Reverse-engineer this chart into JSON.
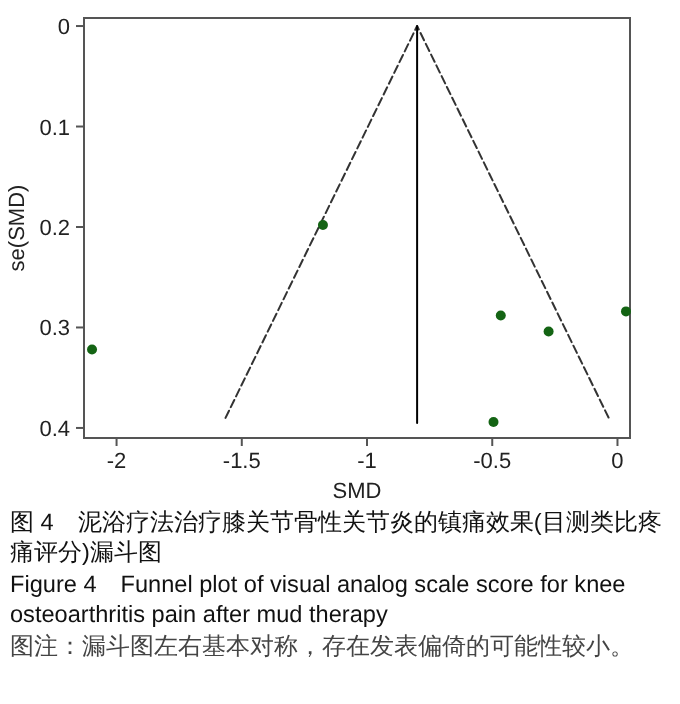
{
  "chart_data": {
    "type": "scatter",
    "xlabel": "SMD",
    "ylabel": "se(SMD)",
    "xlim": [
      -2.13,
      0.05
    ],
    "ylim": [
      0.41,
      -0.008
    ],
    "xticks": [
      -2,
      -1.5,
      -1,
      -0.5,
      0
    ],
    "yticks": [
      0,
      0.1,
      0.2,
      0.3,
      0.4
    ],
    "grid": false,
    "series": [
      {
        "type": "line",
        "x": [
          -1.565,
          -0.8,
          -0.035
        ],
        "values": [
          0.39,
          0,
          0.39
        ],
        "color": "#333333",
        "line_style": "dashed",
        "marker": "none"
      },
      {
        "type": "line",
        "x": [
          -0.8,
          -0.8
        ],
        "values": [
          0,
          0.395
        ],
        "color": "#000000",
        "line_style": "solid",
        "marker": "none"
      },
      {
        "x": [
          -2.098,
          -1.176,
          -0.466,
          -0.275,
          0.034,
          -0.495
        ],
        "values": [
          0.322,
          0.198,
          0.288,
          0.304,
          0.284,
          0.394
        ],
        "color": "#146414",
        "marker": "circle"
      }
    ],
    "annotations": [
      "图 4　泥浴疗法治疗膝关节骨性关节炎的镇痛效果(目测类比疼痛评分)漏斗图",
      "Figure 4　Funnel plot of visual analog scale score for knee osteoarthritis pain after mud therapy",
      "图注：漏斗图左右基本对称，存在发表偏倚的可能性较小。"
    ]
  }
}
